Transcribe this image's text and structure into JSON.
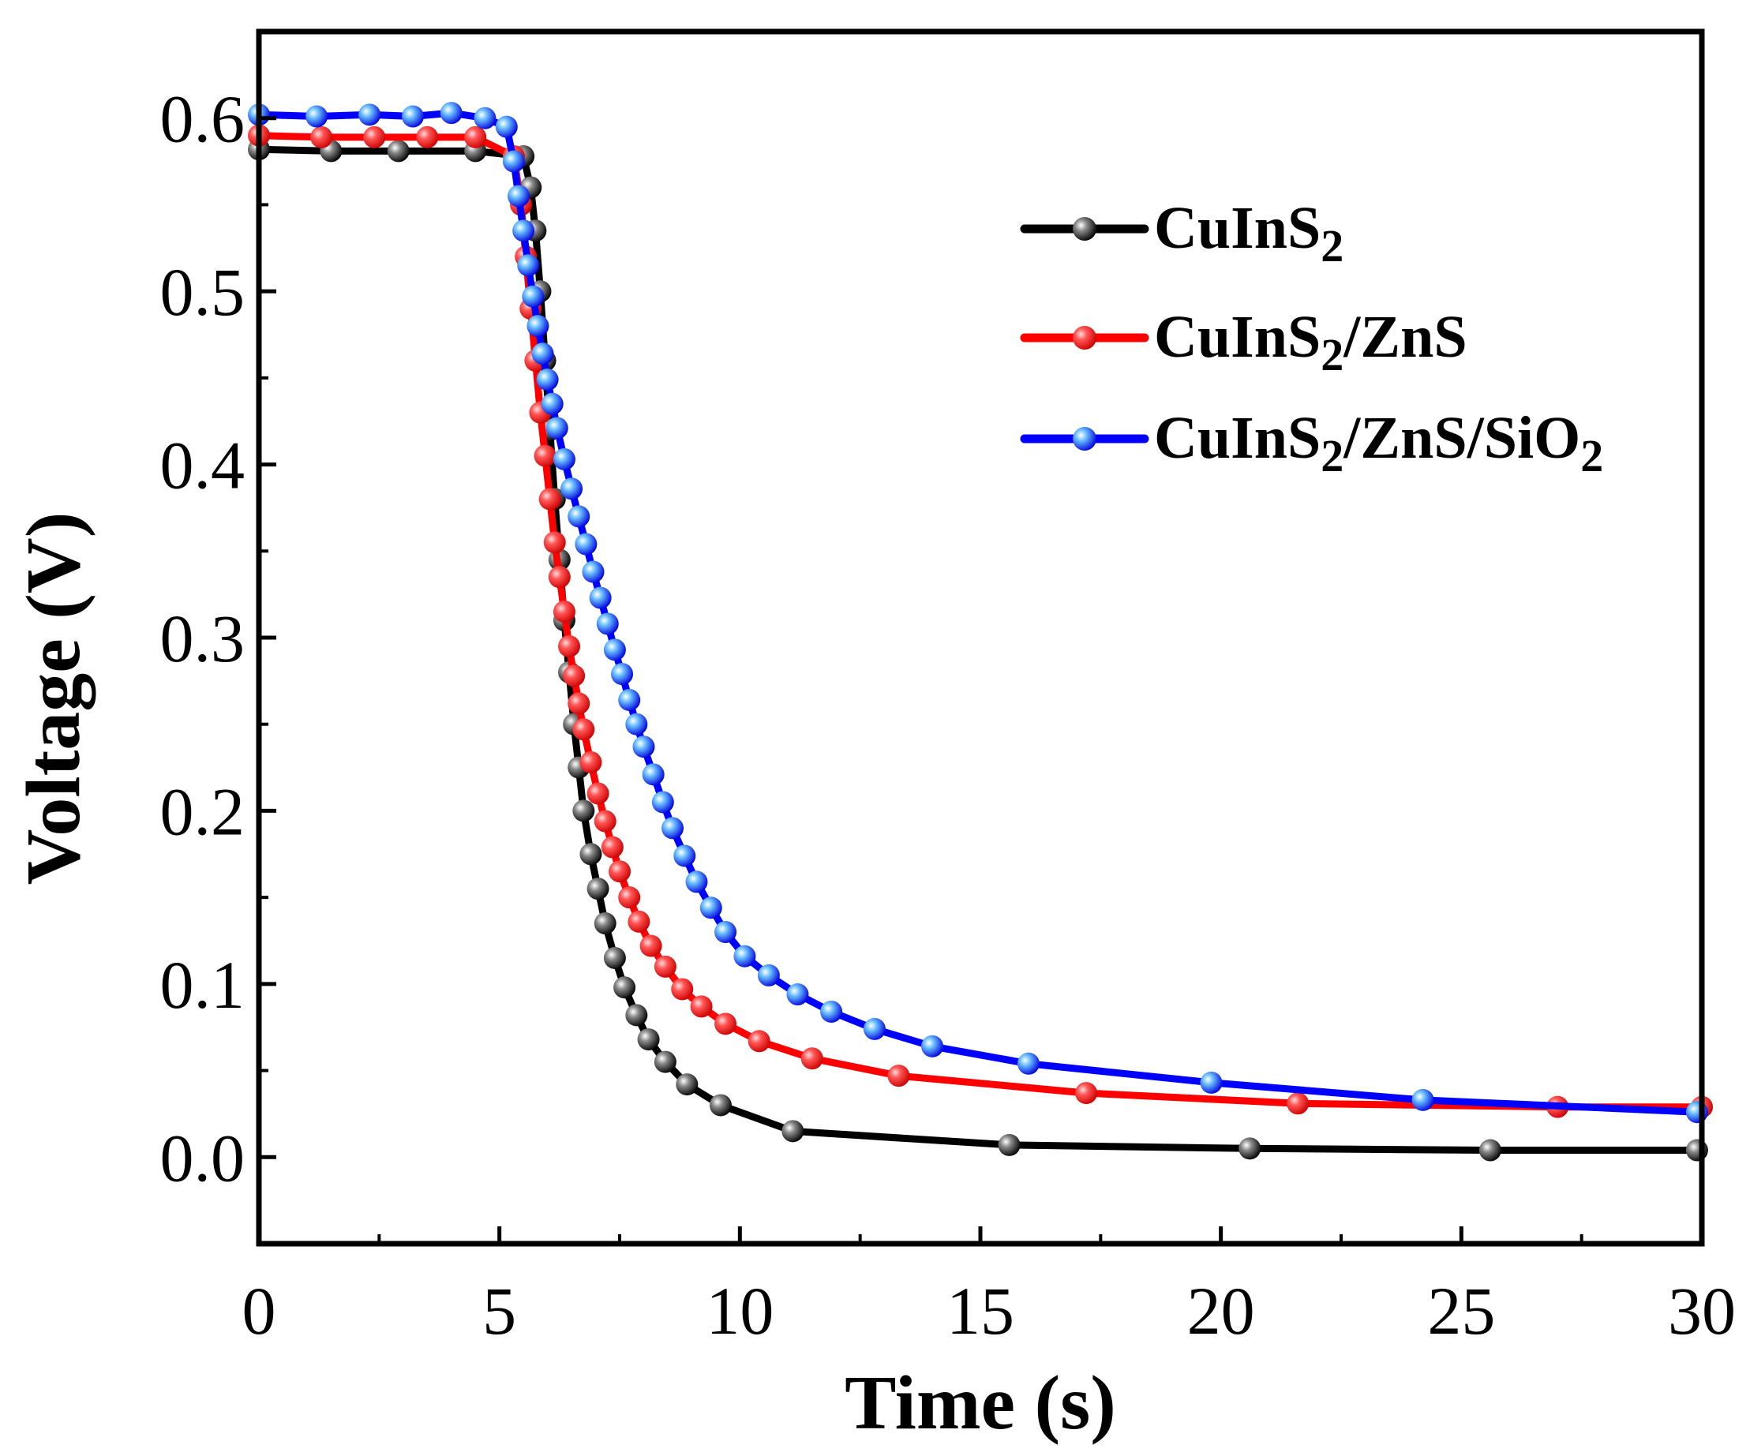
{
  "chart_data": {
    "type": "line",
    "title": "",
    "xlabel": "Time (s)",
    "ylabel": "Voltage (V)",
    "xlim": [
      0,
      30
    ],
    "ylim": [
      -0.05,
      0.65
    ],
    "xticks": [
      0,
      5,
      10,
      15,
      20,
      25,
      30
    ],
    "xtick_labels": [
      "0",
      "5",
      "10",
      "15",
      "20",
      "25",
      "30"
    ],
    "yticks": [
      0.0,
      0.1,
      0.2,
      0.3,
      0.4,
      0.5,
      0.6
    ],
    "ytick_labels": [
      "0.0",
      "0.1",
      "0.2",
      "0.3",
      "0.4",
      "0.5",
      "0.6"
    ],
    "grid": false,
    "legend_position": "top-right",
    "series": [
      {
        "name": "CuInS2",
        "legend": {
          "main": "CuInS",
          "sub": "2",
          "rest": ""
        },
        "color": "#000000",
        "marker_color": "#333333",
        "x": [
          0,
          1.5,
          2.9,
          4.5,
          5.5,
          5.65,
          5.75,
          5.85,
          5.95,
          6.05,
          6.15,
          6.25,
          6.35,
          6.45,
          6.55,
          6.65,
          6.75,
          6.9,
          7.05,
          7.2,
          7.4,
          7.6,
          7.85,
          8.1,
          8.45,
          8.9,
          9.6,
          11.1,
          15.6,
          20.6,
          25.6,
          29.9
        ],
        "y": [
          0.582,
          0.581,
          0.581,
          0.581,
          0.578,
          0.56,
          0.535,
          0.5,
          0.46,
          0.42,
          0.38,
          0.345,
          0.31,
          0.28,
          0.25,
          0.225,
          0.2,
          0.175,
          0.155,
          0.135,
          0.115,
          0.098,
          0.082,
          0.068,
          0.055,
          0.042,
          0.03,
          0.015,
          0.007,
          0.005,
          0.004,
          0.004
        ]
      },
      {
        "name": "CuInS2/ZnS",
        "legend": {
          "main": "CuInS",
          "sub": "2",
          "rest": "/ZnS"
        },
        "color": "#ff0000",
        "marker_color": "#ff2222",
        "x": [
          0,
          1.3,
          2.4,
          3.5,
          4.5,
          5.3,
          5.45,
          5.55,
          5.65,
          5.75,
          5.85,
          5.95,
          6.05,
          6.15,
          6.25,
          6.35,
          6.45,
          6.55,
          6.65,
          6.75,
          6.9,
          7.05,
          7.2,
          7.35,
          7.5,
          7.7,
          7.9,
          8.15,
          8.45,
          8.8,
          9.2,
          9.7,
          10.4,
          11.5,
          13.3,
          17.2,
          21.6,
          27.0,
          30.0
        ],
        "y": [
          0.59,
          0.589,
          0.589,
          0.589,
          0.589,
          0.578,
          0.55,
          0.52,
          0.49,
          0.46,
          0.43,
          0.405,
          0.38,
          0.355,
          0.335,
          0.315,
          0.295,
          0.278,
          0.262,
          0.247,
          0.228,
          0.21,
          0.194,
          0.179,
          0.165,
          0.15,
          0.136,
          0.122,
          0.11,
          0.097,
          0.087,
          0.077,
          0.067,
          0.057,
          0.047,
          0.037,
          0.031,
          0.029,
          0.029
        ]
      },
      {
        "name": "CuInS2/ZnS/SiO2",
        "legend": {
          "main": "CuInS",
          "sub": "2",
          "rest": "/ZnS/SiO",
          "sub2": "2"
        },
        "color": "#0000ff",
        "marker_color": "#2244ff",
        "x": [
          0,
          1.2,
          2.3,
          3.2,
          4.0,
          4.7,
          5.15,
          5.3,
          5.4,
          5.5,
          5.6,
          5.7,
          5.8,
          5.9,
          6.0,
          6.1,
          6.2,
          6.35,
          6.5,
          6.65,
          6.8,
          6.95,
          7.1,
          7.25,
          7.4,
          7.55,
          7.7,
          7.85,
          8.0,
          8.2,
          8.4,
          8.6,
          8.85,
          9.1,
          9.4,
          9.7,
          10.1,
          10.6,
          11.2,
          11.9,
          12.8,
          14.0,
          16.0,
          19.8,
          24.2,
          29.9
        ],
        "y": [
          0.602,
          0.601,
          0.602,
          0.601,
          0.603,
          0.6,
          0.595,
          0.575,
          0.555,
          0.535,
          0.515,
          0.497,
          0.48,
          0.464,
          0.449,
          0.435,
          0.421,
          0.403,
          0.386,
          0.37,
          0.354,
          0.338,
          0.323,
          0.308,
          0.293,
          0.279,
          0.264,
          0.25,
          0.237,
          0.221,
          0.205,
          0.19,
          0.174,
          0.159,
          0.144,
          0.13,
          0.116,
          0.105,
          0.094,
          0.084,
          0.074,
          0.064,
          0.054,
          0.043,
          0.033,
          0.026
        ]
      }
    ]
  }
}
